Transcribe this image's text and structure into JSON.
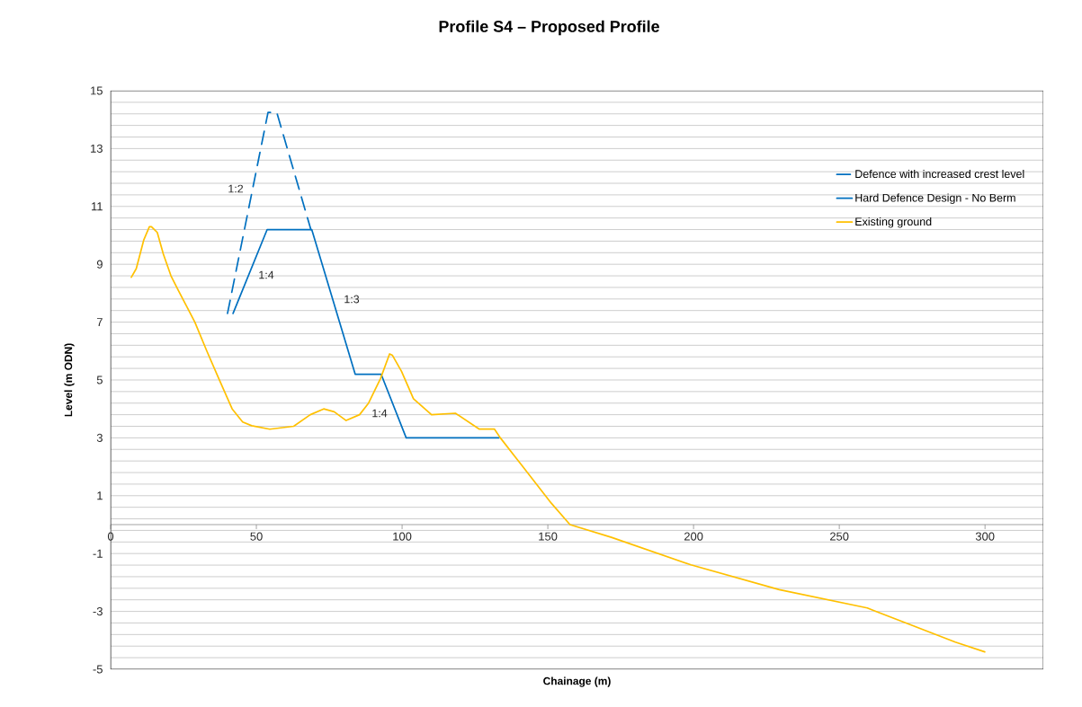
{
  "chart_data": {
    "type": "line",
    "title": "Profile S4 – Proposed Profile",
    "xlabel": "Chainage (m)",
    "ylabel": "Level (m ODN)",
    "xlim": [
      0,
      320
    ],
    "ylim": [
      -5,
      15
    ],
    "xticks": [
      0,
      50,
      100,
      150,
      200,
      250,
      300
    ],
    "yticks": [
      -5,
      {
        "value": -4.6,
        "label": null
      },
      {
        "value": -4.2,
        "label": null
      },
      {
        "value": -3.8,
        "label": null
      },
      {
        "value": -3.4,
        "label": null
      },
      -3,
      {
        "value": -2.6,
        "label": null
      },
      {
        "value": -2.2,
        "label": null
      },
      {
        "value": -1.8,
        "label": null
      },
      {
        "value": -1.4,
        "label": null
      },
      -1,
      {
        "value": -0.6,
        "label": null
      },
      {
        "value": -0.2,
        "label": null
      },
      {
        "value": 0.2,
        "label": null
      },
      {
        "value": 0.6,
        "label": null
      },
      1,
      {
        "value": 1.4,
        "label": null
      },
      {
        "value": 1.8,
        "label": null
      },
      {
        "value": 2.2,
        "label": null
      },
      {
        "value": 2.6,
        "label": null
      },
      3,
      {
        "value": 3.4,
        "label": null
      },
      {
        "value": 3.8,
        "label": null
      },
      {
        "value": 4.2,
        "label": null
      },
      {
        "value": 4.6,
        "label": null
      },
      5,
      {
        "value": 5.4,
        "label": null
      },
      {
        "value": 5.8,
        "label": null
      },
      {
        "value": 6.2,
        "label": null
      },
      {
        "value": 6.6,
        "label": null
      },
      7,
      {
        "value": 7.4,
        "label": null
      },
      {
        "value": 7.8,
        "label": null
      },
      {
        "value": 8.2,
        "label": null
      },
      {
        "value": 8.6,
        "label": null
      },
      9,
      {
        "value": 9.4,
        "label": null
      },
      {
        "value": 9.8,
        "label": null
      },
      {
        "value": 10.2,
        "label": null
      },
      {
        "value": 10.6,
        "label": null
      },
      11,
      {
        "value": 11.4,
        "label": null
      },
      {
        "value": 11.8,
        "label": null
      },
      {
        "value": 12.2,
        "label": null
      },
      {
        "value": 12.6,
        "label": null
      },
      13,
      {
        "value": 13.4,
        "label": null
      },
      {
        "value": 13.8,
        "label": null
      },
      {
        "value": 14.2,
        "label": null
      },
      {
        "value": 14.6,
        "label": null
      },
      15
    ],
    "grid": "y",
    "legend": "top right",
    "marker": "none",
    "series": [
      {
        "name": "Defence with increased crest level",
        "color": "#0070c0",
        "line_style": "dashed",
        "x": [
          40.1,
          54,
          57,
          68.7
        ],
        "values": [
          7.3,
          14.25,
          14.25,
          10.2
        ]
      },
      {
        "name": "Hard Defence Design - No Berm",
        "color": "#0070c0",
        "line_style": "solid",
        "x": [
          42,
          53.7,
          69,
          83.9,
          92.8,
          101.4,
          133.2
        ],
        "values": [
          7.3,
          10.2,
          10.2,
          5.2,
          5.2,
          3.0,
          3.0
        ]
      },
      {
        "name": "Existing ground",
        "color": "#ffc000",
        "line_style": "solid",
        "x": [
          7.1,
          8.8,
          11.4,
          13.3,
          14.0,
          16.0,
          18.1,
          20.7,
          23.2,
          26.3,
          28.9,
          33.0,
          37.1,
          41.7,
          45.3,
          48.4,
          54.6,
          62.8,
          68.5,
          73.1,
          76.7,
          80.8,
          85.4,
          88.5,
          92.6,
          95.7,
          96.7,
          99.8,
          103.9,
          110.1,
          118.3,
          126.5,
          131.7,
          133.7,
          140.9,
          151.2,
          157.6,
          171.8,
          199.1,
          229.4,
          259.6,
          262.1,
          289.8,
          299.9
        ],
        "values": [
          8.55,
          8.85,
          9.85,
          10.3,
          10.3,
          10.1,
          9.35,
          8.6,
          8.1,
          7.5,
          7.0,
          6.0,
          5.05,
          4.0,
          3.55,
          3.42,
          3.3,
          3.4,
          3.8,
          4.0,
          3.9,
          3.6,
          3.8,
          4.2,
          5.05,
          5.9,
          5.85,
          5.3,
          4.35,
          3.8,
          3.85,
          3.3,
          3.3,
          3.0,
          2.07,
          0.74,
          0.0,
          -0.44,
          -1.39,
          -2.25,
          -2.88,
          -2.98,
          -4.06,
          -4.4
        ]
      }
    ],
    "annotations": [
      "1:2",
      "1:4",
      "1:3",
      "1:4"
    ]
  }
}
